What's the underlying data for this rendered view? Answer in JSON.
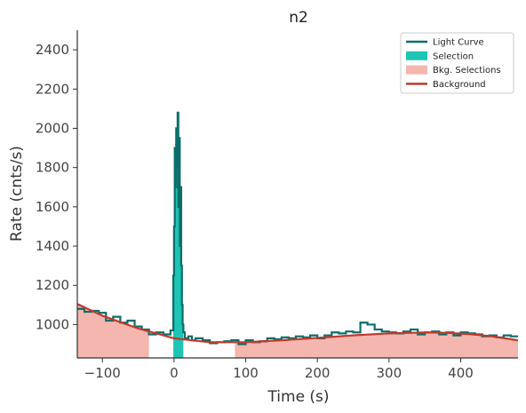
{
  "chart_data": {
    "type": "line",
    "title": "n2",
    "xlabel": "Time (s)",
    "ylabel": "Rate (cnts/s)",
    "xlim": [
      -135,
      480
    ],
    "ylim": [
      830,
      2500
    ],
    "xticks": [
      -100,
      0,
      100,
      200,
      300,
      400
    ],
    "yticks": [
      1000,
      1200,
      1400,
      1600,
      1800,
      2000,
      2200,
      2400
    ],
    "xtick_labels": [
      "−100",
      "0",
      "100",
      "200",
      "300",
      "400"
    ],
    "ytick_labels": [
      "1000",
      "1200",
      "1400",
      "1600",
      "1800",
      "2000",
      "2200",
      "2400"
    ],
    "grid": false,
    "legend_position": "top-right",
    "legend": [
      {
        "label": "Light Curve",
        "kind": "line",
        "color": "#0b6e6a"
      },
      {
        "label": "Selection",
        "kind": "patch",
        "color": "#1ec4b4"
      },
      {
        "label": "Bkg. Selections",
        "kind": "patch",
        "color": "#f4b6ae"
      },
      {
        "label": "Background",
        "kind": "line",
        "color": "#c0392b"
      }
    ],
    "series": [
      {
        "name": "Light Curve",
        "kind": "step",
        "color": "#0b6e6a",
        "x": [
          -135,
          -125,
          -115,
          -105,
          -95,
          -85,
          -75,
          -65,
          -55,
          -45,
          -35,
          -25,
          -15,
          -5,
          -1,
          0,
          1,
          2,
          3,
          4,
          5,
          6,
          7,
          8,
          9,
          10,
          11,
          12,
          13,
          15,
          20,
          25,
          30,
          40,
          50,
          60,
          70,
          80,
          90,
          100,
          110,
          120,
          130,
          140,
          150,
          160,
          170,
          180,
          190,
          200,
          210,
          220,
          230,
          240,
          250,
          260,
          270,
          280,
          290,
          300,
          310,
          320,
          330,
          340,
          350,
          360,
          370,
          380,
          390,
          400,
          410,
          420,
          430,
          440,
          450,
          460,
          470
        ],
        "y": [
          1080,
          1065,
          1070,
          1060,
          1020,
          1040,
          1010,
          1020,
          990,
          975,
          950,
          960,
          950,
          970,
          1250,
          1500,
          1900,
          1700,
          2000,
          1800,
          2080,
          1600,
          1950,
          1400,
          1700,
          1300,
          1100,
          1000,
          960,
          930,
          940,
          920,
          930,
          920,
          905,
          910,
          915,
          920,
          900,
          920,
          910,
          915,
          930,
          925,
          935,
          930,
          940,
          935,
          945,
          930,
          945,
          960,
          955,
          965,
          960,
          1010,
          1000,
          975,
          965,
          960,
          955,
          965,
          975,
          950,
          960,
          965,
          950,
          960,
          945,
          960,
          955,
          950,
          940,
          945,
          935,
          945,
          940
        ]
      },
      {
        "name": "Background",
        "kind": "line",
        "color": "#c0392b",
        "x": [
          -135,
          -100,
          -50,
          0,
          50,
          100,
          150,
          200,
          250,
          300,
          350,
          380,
          410,
          440,
          480
        ],
        "y": [
          1105,
          1045,
          980,
          930,
          910,
          910,
          920,
          932,
          945,
          955,
          960,
          958,
          952,
          942,
          920
        ]
      }
    ],
    "selection": {
      "name": "Selection",
      "x_range": [
        -1,
        13
      ],
      "color": "#1ec4b4"
    },
    "bkg_selections": [
      {
        "x_range": [
          -135,
          -35
        ]
      },
      {
        "x_range": [
          85,
          480
        ]
      }
    ]
  }
}
